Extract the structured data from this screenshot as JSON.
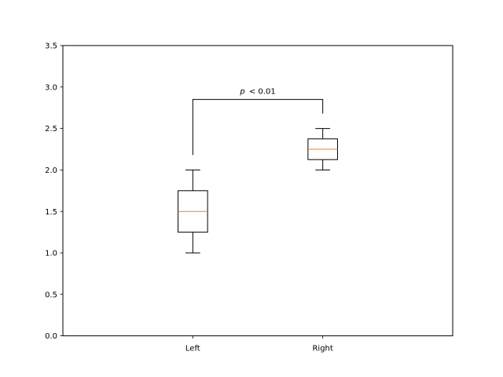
{
  "chart_data": {
    "type": "box",
    "categories": [
      "Left",
      "Right"
    ],
    "boxes": [
      {
        "name": "Left",
        "whisker_low": 1.0,
        "q1": 1.25,
        "median": 1.5,
        "q3": 1.75,
        "whisker_high": 2.0
      },
      {
        "name": "Right",
        "whisker_low": 2.0,
        "q1": 2.125,
        "median": 2.25,
        "q3": 2.375,
        "whisker_high": 2.5
      }
    ],
    "ylim": [
      0,
      3.5
    ],
    "yticks": [
      0.0,
      0.5,
      1.0,
      1.5,
      2.0,
      2.5,
      3.0,
      3.5
    ],
    "ytick_labels": [
      "0.0",
      "0.5",
      "1.0",
      "1.5",
      "2.0",
      "2.5",
      "3.0",
      "3.5"
    ],
    "grid": false,
    "annotation": {
      "p_symbol": "p",
      "relation": "< 0.01",
      "bracket_y": 2.85,
      "left_leg_bottom": 2.18,
      "right_leg_bottom": 2.68
    },
    "colors": {
      "median": "#ff7f0e",
      "box": "#000000",
      "frame": "#000000"
    }
  }
}
